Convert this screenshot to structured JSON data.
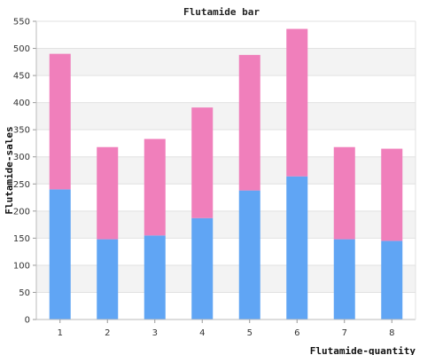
{
  "chart_data": {
    "type": "bar",
    "stacked": true,
    "title": "Flutamide bar",
    "xlabel": "Flutamide-quantity",
    "ylabel": "Flutamide-sales",
    "categories": [
      "1",
      "2",
      "3",
      "4",
      "5",
      "6",
      "7",
      "8"
    ],
    "ylim": [
      0,
      550
    ],
    "yticks": [
      "0",
      "50",
      "100",
      "150",
      "200",
      "250",
      "300",
      "350",
      "400",
      "450",
      "500",
      "550"
    ],
    "grid": true,
    "legend": "none",
    "series": [
      {
        "values": [
          240,
          148,
          155,
          187,
          238,
          264,
          148,
          145
        ],
        "color": "#60a5f4"
      },
      {
        "values": [
          250,
          170,
          178,
          204,
          250,
          272,
          170,
          170
        ],
        "color": "#f07fbb"
      }
    ]
  }
}
